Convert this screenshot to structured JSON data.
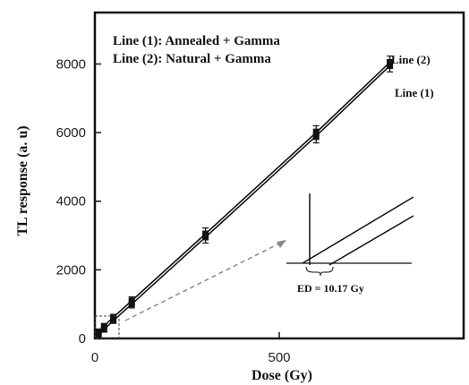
{
  "chart_data": {
    "type": "line",
    "title": "",
    "xlabel": "Dose (Gy)",
    "ylabel": "TL response (a. u)",
    "xlim": [
      0,
      1000
    ],
    "ylim": [
      0,
      9500
    ],
    "x_ticks": [
      0,
      500
    ],
    "y_ticks": [
      0,
      2000,
      4000,
      6000,
      8000
    ],
    "grid": false,
    "legend": {
      "placement": "top-left",
      "entries": [
        "Line (1): Annealed + Gamma",
        "Line (2): Natural + Gamma"
      ]
    },
    "series": [
      {
        "name": "Line (1)",
        "x": [
          0,
          10,
          25,
          50,
          100,
          300,
          600,
          800
        ],
        "y": [
          0,
          100,
          260,
          520,
          1000,
          2950,
          5900,
          7950
        ],
        "errors": [
          0,
          40,
          60,
          80,
          110,
          170,
          200,
          180
        ]
      },
      {
        "name": "Line (2)",
        "x": [
          0,
          10,
          25,
          50,
          100,
          300,
          600,
          800
        ],
        "y": [
          100,
          200,
          360,
          620,
          1100,
          3050,
          6000,
          8050
        ],
        "errors": [
          0,
          40,
          60,
          80,
          110,
          170,
          200,
          180
        ]
      }
    ],
    "annotations": {
      "line_labels": [
        "Line (2)",
        "Line (1)"
      ],
      "inset_label": "ED = 10.17 Gy"
    }
  }
}
